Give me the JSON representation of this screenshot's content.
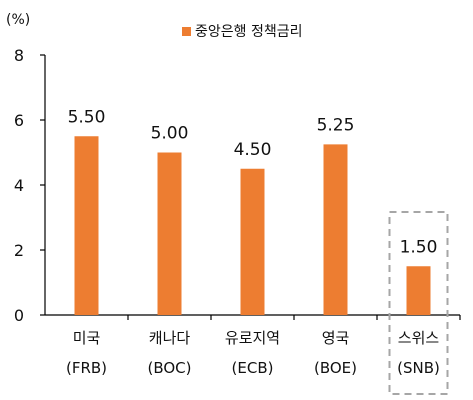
{
  "chart_data": {
    "type": "bar",
    "unit_label": "(%)",
    "categories": [
      [
        "미국",
        "(FRB)"
      ],
      [
        "캐나다",
        "(BOC)"
      ],
      [
        "유로지역",
        "(ECB)"
      ],
      [
        "영국",
        "(BOE)"
      ],
      [
        "스위스",
        "(SNB)"
      ]
    ],
    "series": [
      {
        "name": "중앙은행 정책금리",
        "values": [
          5.5,
          5.0,
          4.5,
          5.25,
          1.5
        ],
        "labels": [
          "5.50",
          "5.00",
          "4.50",
          "5.25",
          "1.50"
        ],
        "color": "#ED7D31"
      }
    ],
    "yticks": [
      "0",
      "2",
      "4",
      "6",
      "8"
    ],
    "ylim": [
      0,
      8
    ],
    "grid": false,
    "legend_position": "top",
    "highlighted_category_index": 4,
    "highlight_border_color": "#A6A6A6"
  }
}
